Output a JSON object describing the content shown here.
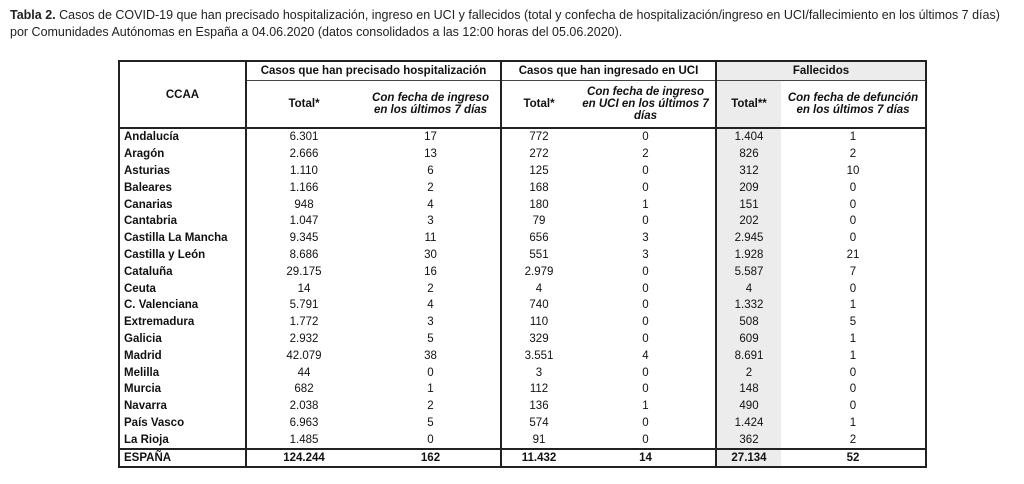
{
  "caption": {
    "label": "Tabla 2.",
    "lines": [
      "Casos de COVID-19 que han precisado hospitalización, ingreso en UCI y fallecidos (total y confecha de hospitalización/ingreso en UCI/fallecimiento en los últimos 7 días)",
      "por Comunidades Autónomas en España a 04.06.2020 (datos consolidados a las 12:00 horas del 05.06.2020)."
    ]
  },
  "table": {
    "corner": "CCAA",
    "groups": [
      "Casos que han precisado hospitalización",
      "Casos que han ingresado en UCI",
      "Fallecidos"
    ],
    "subheaders": [
      "Total*",
      "Con fecha de ingreso en los últimos 7 días",
      "Total*",
      "Con fecha de ingreso en UCI en los últimos 7 días",
      "Total**",
      "Con fecha de defunción en los últimos 7 días"
    ],
    "rows": [
      [
        "Andalucía",
        "6.301",
        "17",
        "772",
        "0",
        "1.404",
        "1"
      ],
      [
        "Aragón",
        "2.666",
        "13",
        "272",
        "2",
        "826",
        "2"
      ],
      [
        "Asturias",
        "1.110",
        "6",
        "125",
        "0",
        "312",
        "10"
      ],
      [
        "Baleares",
        "1.166",
        "2",
        "168",
        "0",
        "209",
        "0"
      ],
      [
        "Canarias",
        "948",
        "4",
        "180",
        "1",
        "151",
        "0"
      ],
      [
        "Cantabria",
        "1.047",
        "3",
        "79",
        "0",
        "202",
        "0"
      ],
      [
        "Castilla La Mancha",
        "9.345",
        "11",
        "656",
        "3",
        "2.945",
        "0"
      ],
      [
        "Castilla y León",
        "8.686",
        "30",
        "551",
        "3",
        "1.928",
        "21"
      ],
      [
        "Cataluña",
        "29.175",
        "16",
        "2.979",
        "0",
        "5.587",
        "7"
      ],
      [
        "Ceuta",
        "14",
        "2",
        "4",
        "0",
        "4",
        "0"
      ],
      [
        "C. Valenciana",
        "5.791",
        "4",
        "740",
        "0",
        "1.332",
        "1"
      ],
      [
        "Extremadura",
        "1.772",
        "3",
        "110",
        "0",
        "508",
        "5"
      ],
      [
        "Galicia",
        "2.932",
        "5",
        "329",
        "0",
        "609",
        "1"
      ],
      [
        "Madrid",
        "42.079",
        "38",
        "3.551",
        "4",
        "8.691",
        "1"
      ],
      [
        "Melilla",
        "44",
        "0",
        "3",
        "0",
        "2",
        "0"
      ],
      [
        "Murcia",
        "682",
        "1",
        "112",
        "0",
        "148",
        "0"
      ],
      [
        "Navarra",
        "2.038",
        "2",
        "136",
        "1",
        "490",
        "0"
      ],
      [
        "País Vasco",
        "6.963",
        "5",
        "574",
        "0",
        "1.424",
        "1"
      ],
      [
        "La Rioja",
        "1.485",
        "0",
        "91",
        "0",
        "362",
        "2"
      ]
    ],
    "total": [
      "ESPAÑA",
      "124.244",
      "162",
      "11.432",
      "14",
      "27.134",
      "52"
    ]
  }
}
